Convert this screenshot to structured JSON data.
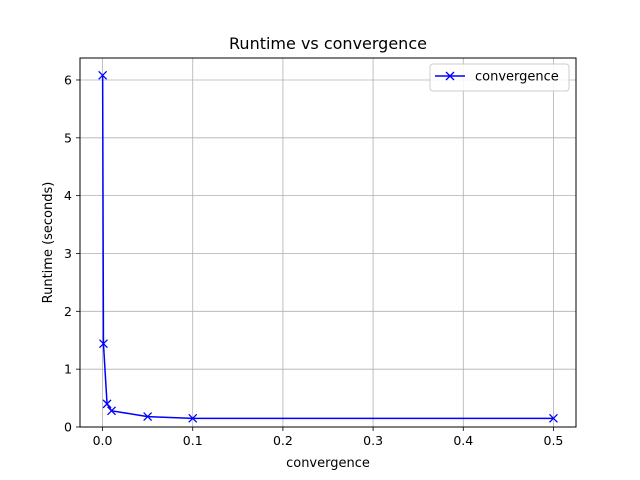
{
  "chart_data": {
    "type": "line",
    "title": "Runtime vs convergence",
    "xlabel": "convergence",
    "ylabel": "Runtime (seconds)",
    "xlim": [
      -0.025,
      0.525
    ],
    "ylim": [
      0,
      6.38
    ],
    "xticks": [
      0.0,
      0.1,
      0.2,
      0.3,
      0.4,
      0.5
    ],
    "xtick_labels": [
      "0.0",
      "0.1",
      "0.2",
      "0.3",
      "0.4",
      "0.5"
    ],
    "yticks": [
      0,
      1,
      2,
      3,
      4,
      5,
      6
    ],
    "ytick_labels": [
      "0",
      "1",
      "2",
      "3",
      "4",
      "5",
      "6"
    ],
    "grid": true,
    "legend_position": "top-right",
    "series": [
      {
        "name": "convergence",
        "color": "#0000ff",
        "marker": "x",
        "x": [
          0.0001,
          0.001,
          0.005,
          0.01,
          0.05,
          0.1,
          0.5
        ],
        "y": [
          6.08,
          1.44,
          0.4,
          0.28,
          0.18,
          0.15,
          0.15
        ]
      }
    ]
  }
}
